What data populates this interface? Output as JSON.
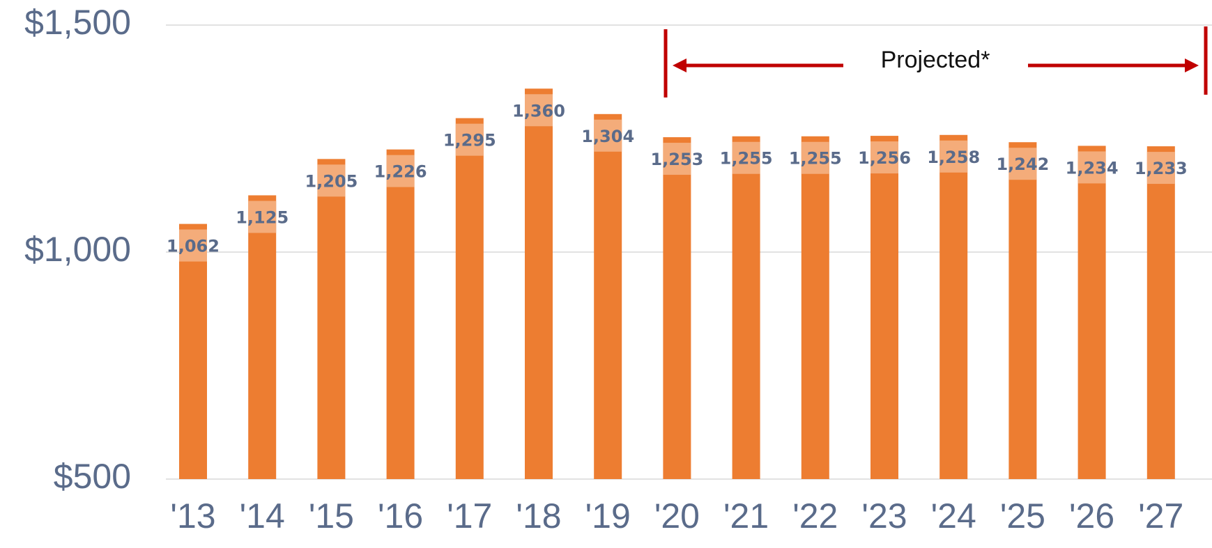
{
  "chart_data": {
    "type": "bar",
    "annotation": "Projected*",
    "categories": [
      "'13",
      "'14",
      "'15",
      "'16",
      "'17",
      "'18",
      "'19",
      "'20",
      "'21",
      "'22",
      "'23",
      "'24",
      "'25",
      "'26",
      "'27"
    ],
    "values": [
      1062,
      1125,
      1205,
      1226,
      1295,
      1360,
      1304,
      1253,
      1255,
      1255,
      1256,
      1258,
      1242,
      1234,
      1233
    ],
    "value_labels": [
      "1,062",
      "1,125",
      "1,205",
      "1,226",
      "1,295",
      "1,360",
      "1,304",
      "1,253",
      "1,255",
      "1,255",
      "1,256",
      "1,258",
      "1,242",
      "1,234",
      "1,233"
    ],
    "color": "#ed7d31",
    "ylim": [
      500,
      1500
    ],
    "yticks": [
      {
        "value": 500,
        "label": "$500"
      },
      {
        "value": 1000,
        "label": "$1,000"
      },
      {
        "value": 1500,
        "label": "$1,500"
      }
    ],
    "grid": true
  }
}
